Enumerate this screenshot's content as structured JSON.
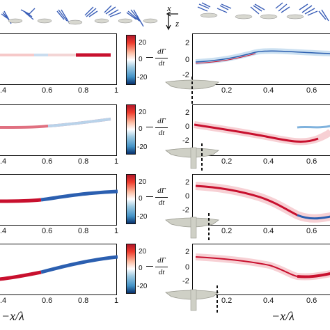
{
  "figure": {
    "rows": [
      {
        "left_ticks": ".4,0.6,0.8,1"
      },
      {
        "left_ticks": ".4,0.6,0.8,1"
      },
      {
        "left_ticks": ".4,0.6,0.8,1"
      },
      {
        "left_ticks": ".4,0.6,0.8,1"
      }
    ],
    "left_xticks": [
      ".4",
      "0.6",
      "0.8",
      "1"
    ],
    "right_xticks": [
      "0.2",
      "0.4",
      "0.6"
    ],
    "right_yticks": [
      "2",
      "0",
      "-2"
    ],
    "colorbar": {
      "top": "20",
      "mid": "0",
      "bottom": "-20",
      "numerator": "dΓ",
      "denominator": "dt"
    },
    "xlabel_left": "−x/λ",
    "xlabel_right": "−x/λ",
    "axes_label_x": "x",
    "axes_label_z": "z",
    "colors": {
      "red": "#c8102e",
      "blue": "#2b5fb0",
      "lightblue": "#a9cbe8",
      "fin": "#cfd0c6",
      "fish": "#3b5fb8"
    }
  }
}
